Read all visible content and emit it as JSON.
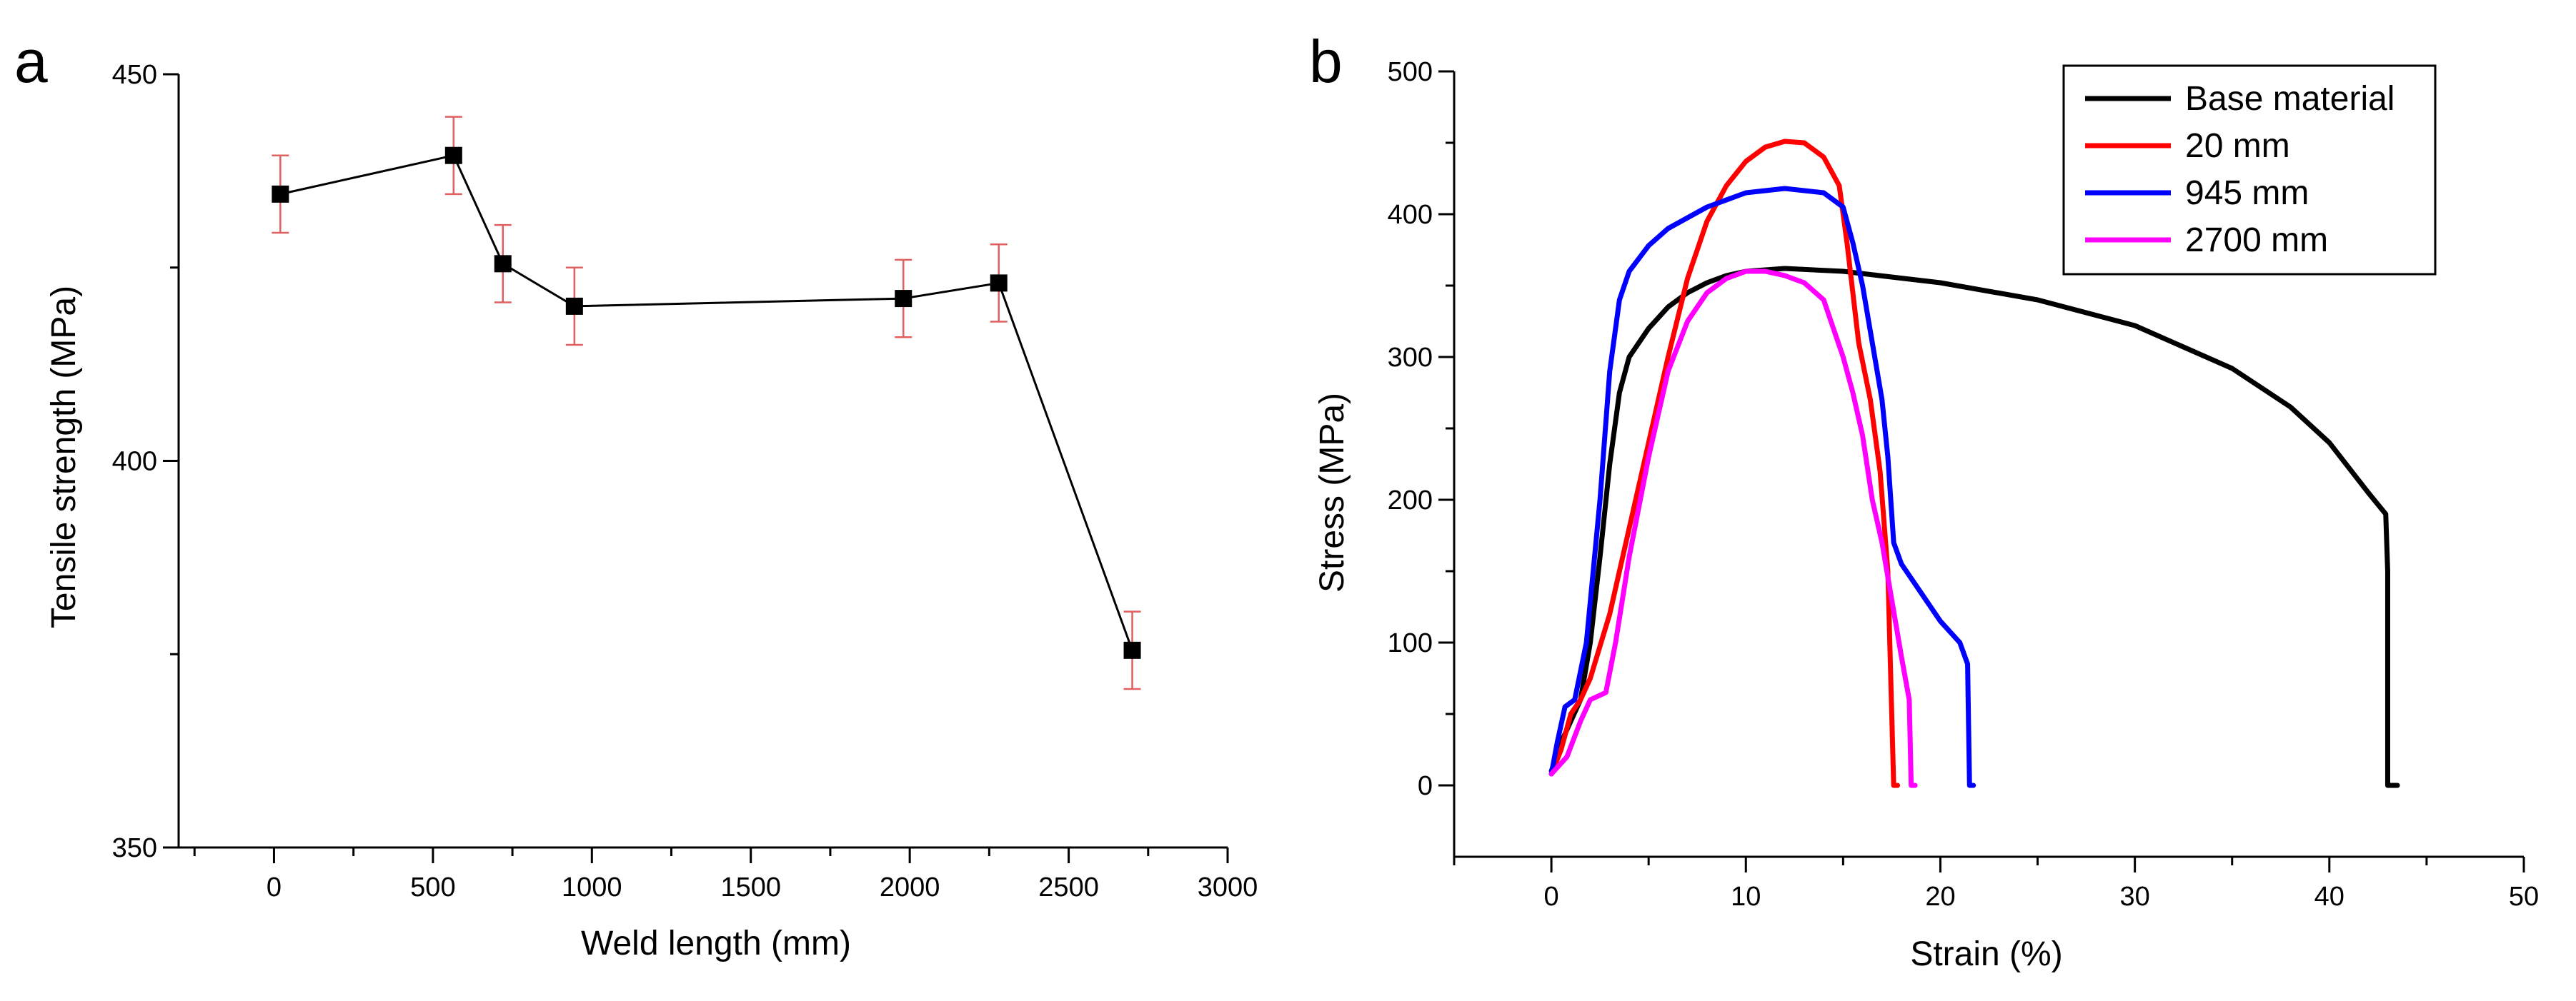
{
  "chart_data": [
    {
      "panel": "a",
      "type": "line",
      "title": "",
      "xlabel": "Weld length (mm)",
      "ylabel": "Tensile strength (MPa)",
      "xlim": [
        -300,
        3000
      ],
      "ylim": [
        350,
        450
      ],
      "xticks": [
        0,
        500,
        1000,
        1500,
        2000,
        2500,
        3000
      ],
      "yticks": [
        350,
        400,
        450
      ],
      "line_color": "#000000",
      "marker": "square",
      "errorbar_color": "#e06060",
      "points": [
        {
          "x": 20,
          "y": 434.5,
          "err": 5
        },
        {
          "x": 565,
          "y": 439.5,
          "err": 5
        },
        {
          "x": 720,
          "y": 425.5,
          "err": 5
        },
        {
          "x": 945,
          "y": 420,
          "err": 5
        },
        {
          "x": 1980,
          "y": 421,
          "err": 5
        },
        {
          "x": 2280,
          "y": 423,
          "err": 5
        },
        {
          "x": 2700,
          "y": 375.5,
          "err": 5
        }
      ]
    },
    {
      "panel": "b",
      "type": "line",
      "title": "",
      "xlabel": "Strain (%)",
      "ylabel": "Stress (MPa)",
      "xlim": [
        -5,
        50
      ],
      "ylim": [
        -50,
        500
      ],
      "xticks": [
        0,
        10,
        20,
        30,
        40,
        50
      ],
      "yticks": [
        0,
        100,
        200,
        300,
        400,
        500
      ],
      "legend_position": "top-right",
      "series": [
        {
          "name": "Base material",
          "color": "#000000",
          "points": [
            [
              0,
              10
            ],
            [
              0.5,
              30
            ],
            [
              1,
              45
            ],
            [
              1.5,
              60
            ],
            [
              2,
              100
            ],
            [
              2.5,
              160
            ],
            [
              3,
              225
            ],
            [
              3.5,
              275
            ],
            [
              4,
              300
            ],
            [
              5,
              320
            ],
            [
              6,
              335
            ],
            [
              7,
              345
            ],
            [
              8,
              352
            ],
            [
              9,
              357
            ],
            [
              10,
              360
            ],
            [
              12,
              362
            ],
            [
              15,
              360
            ],
            [
              20,
              352
            ],
            [
              25,
              340
            ],
            [
              30,
              322
            ],
            [
              35,
              292
            ],
            [
              38,
              265
            ],
            [
              40,
              240
            ],
            [
              42,
              205
            ],
            [
              42.9,
              190
            ],
            [
              43,
              150
            ],
            [
              43,
              0
            ],
            [
              43.5,
              0
            ]
          ]
        },
        {
          "name": "20 mm",
          "color": "#ff0000",
          "points": [
            [
              0,
              8
            ],
            [
              0.5,
              25
            ],
            [
              1,
              50
            ],
            [
              1.5,
              60
            ],
            [
              2,
              75
            ],
            [
              3,
              120
            ],
            [
              4,
              180
            ],
            [
              5,
              240
            ],
            [
              6,
              300
            ],
            [
              7,
              355
            ],
            [
              8,
              395
            ],
            [
              9,
              420
            ],
            [
              10,
              437
            ],
            [
              11,
              447
            ],
            [
              12,
              451
            ],
            [
              13,
              450
            ],
            [
              14,
              440
            ],
            [
              14.8,
              420
            ],
            [
              15.2,
              380
            ],
            [
              15.8,
              310
            ],
            [
              16.4,
              270
            ],
            [
              16.9,
              220
            ],
            [
              17.3,
              150
            ],
            [
              17.6,
              0
            ],
            [
              17.8,
              0
            ]
          ]
        },
        {
          "name": "945 mm",
          "color": "#0000ff",
          "points": [
            [
              0,
              8
            ],
            [
              0.3,
              30
            ],
            [
              0.7,
              55
            ],
            [
              1.2,
              60
            ],
            [
              1.8,
              100
            ],
            [
              2.5,
              200
            ],
            [
              3,
              290
            ],
            [
              3.5,
              340
            ],
            [
              4,
              360
            ],
            [
              5,
              378
            ],
            [
              6,
              390
            ],
            [
              8,
              405
            ],
            [
              10,
              415
            ],
            [
              12,
              418
            ],
            [
              14,
              415
            ],
            [
              15,
              405
            ],
            [
              15.5,
              380
            ],
            [
              16,
              350
            ],
            [
              16.5,
              310
            ],
            [
              17,
              270
            ],
            [
              17.3,
              230
            ],
            [
              17.6,
              170
            ],
            [
              18,
              155
            ],
            [
              19,
              135
            ],
            [
              20,
              115
            ],
            [
              21,
              100
            ],
            [
              21.4,
              85
            ],
            [
              21.5,
              0
            ],
            [
              21.7,
              0
            ]
          ]
        },
        {
          "name": "2700 mm",
          "color": "#ff00ff",
          "points": [
            [
              0,
              8
            ],
            [
              0.8,
              20
            ],
            [
              1.5,
              45
            ],
            [
              2,
              60
            ],
            [
              2.8,
              65
            ],
            [
              3.3,
              100
            ],
            [
              4,
              160
            ],
            [
              5,
              230
            ],
            [
              6,
              290
            ],
            [
              7,
              325
            ],
            [
              8,
              345
            ],
            [
              9,
              355
            ],
            [
              10,
              360
            ],
            [
              11,
              360
            ],
            [
              12,
              357
            ],
            [
              13,
              352
            ],
            [
              14,
              340
            ],
            [
              14.5,
              320
            ],
            [
              15,
              300
            ],
            [
              15.5,
              275
            ],
            [
              16,
              245
            ],
            [
              16.5,
              200
            ],
            [
              17,
              170
            ],
            [
              17.5,
              130
            ],
            [
              18,
              90
            ],
            [
              18.4,
              60
            ],
            [
              18.5,
              0
            ],
            [
              18.7,
              0
            ]
          ]
        }
      ]
    }
  ]
}
